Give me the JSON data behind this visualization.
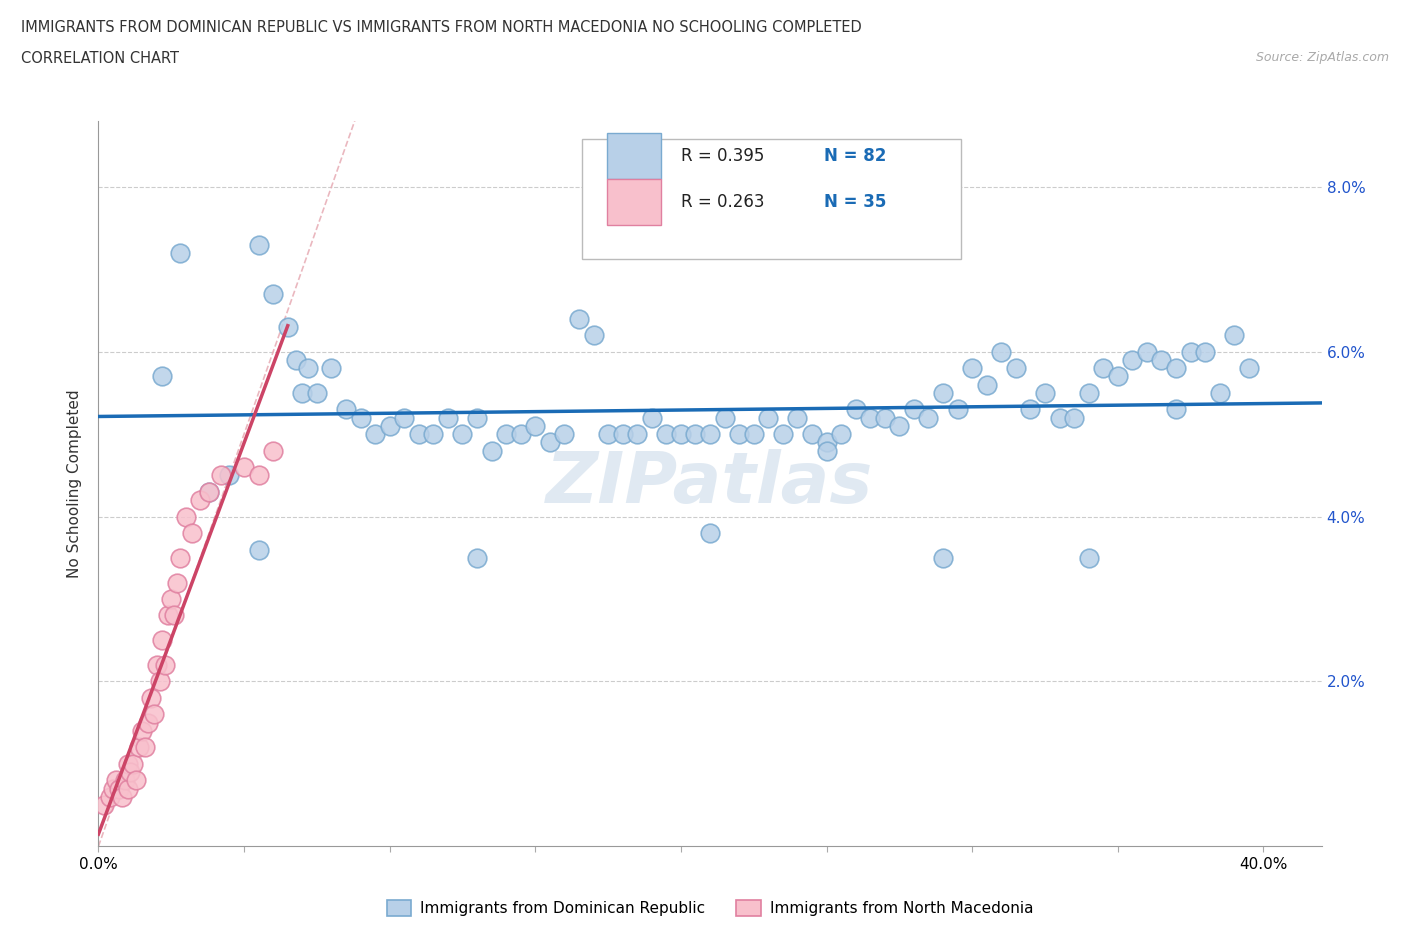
{
  "title_line1": "IMMIGRANTS FROM DOMINICAN REPUBLIC VS IMMIGRANTS FROM NORTH MACEDONIA NO SCHOOLING COMPLETED",
  "title_line2": "CORRELATION CHART",
  "source": "Source: ZipAtlas.com",
  "ylabel": "No Schooling Completed",
  "xlim": [
    0.0,
    0.42
  ],
  "ylim": [
    0.0,
    0.088
  ],
  "color_blue_fill": "#b8d0e8",
  "color_blue_edge": "#7aaad0",
  "color_pink_fill": "#f8c0cc",
  "color_pink_edge": "#e080a0",
  "color_blue_line": "#1a6bb5",
  "color_pink_line": "#cc4466",
  "color_diag": "#e8b0b8",
  "r1": "0.395",
  "n1": "82",
  "r2": "0.263",
  "n2": "35",
  "watermark": "ZIPatlas",
  "blue_x": [
    0.022,
    0.028,
    0.055,
    0.06,
    0.065,
    0.068,
    0.07,
    0.072,
    0.075,
    0.08,
    0.085,
    0.09,
    0.095,
    0.1,
    0.105,
    0.11,
    0.115,
    0.12,
    0.125,
    0.13,
    0.135,
    0.14,
    0.145,
    0.15,
    0.155,
    0.16,
    0.165,
    0.17,
    0.175,
    0.18,
    0.185,
    0.19,
    0.195,
    0.2,
    0.205,
    0.21,
    0.215,
    0.22,
    0.225,
    0.23,
    0.235,
    0.24,
    0.245,
    0.25,
    0.255,
    0.26,
    0.265,
    0.27,
    0.275,
    0.28,
    0.285,
    0.29,
    0.295,
    0.3,
    0.305,
    0.31,
    0.315,
    0.32,
    0.325,
    0.33,
    0.335,
    0.34,
    0.345,
    0.35,
    0.355,
    0.36,
    0.365,
    0.37,
    0.375,
    0.38,
    0.385,
    0.39,
    0.038,
    0.045,
    0.055,
    0.13,
    0.21,
    0.25,
    0.29,
    0.34,
    0.37,
    0.395
  ],
  "blue_y": [
    0.057,
    0.072,
    0.073,
    0.067,
    0.063,
    0.059,
    0.055,
    0.058,
    0.055,
    0.058,
    0.053,
    0.052,
    0.05,
    0.051,
    0.052,
    0.05,
    0.05,
    0.052,
    0.05,
    0.052,
    0.048,
    0.05,
    0.05,
    0.051,
    0.049,
    0.05,
    0.064,
    0.062,
    0.05,
    0.05,
    0.05,
    0.052,
    0.05,
    0.05,
    0.05,
    0.05,
    0.052,
    0.05,
    0.05,
    0.052,
    0.05,
    0.052,
    0.05,
    0.049,
    0.05,
    0.053,
    0.052,
    0.052,
    0.051,
    0.053,
    0.052,
    0.055,
    0.053,
    0.058,
    0.056,
    0.06,
    0.058,
    0.053,
    0.055,
    0.052,
    0.052,
    0.055,
    0.058,
    0.057,
    0.059,
    0.06,
    0.059,
    0.058,
    0.06,
    0.06,
    0.055,
    0.062,
    0.043,
    0.045,
    0.036,
    0.035,
    0.038,
    0.048,
    0.035,
    0.035,
    0.053,
    0.058
  ],
  "pink_x": [
    0.002,
    0.004,
    0.005,
    0.006,
    0.007,
    0.008,
    0.009,
    0.01,
    0.01,
    0.011,
    0.012,
    0.013,
    0.014,
    0.015,
    0.016,
    0.017,
    0.018,
    0.019,
    0.02,
    0.021,
    0.022,
    0.023,
    0.024,
    0.025,
    0.026,
    0.027,
    0.028,
    0.03,
    0.032,
    0.035,
    0.038,
    0.042,
    0.05,
    0.055,
    0.06
  ],
  "pink_y": [
    0.005,
    0.006,
    0.007,
    0.008,
    0.007,
    0.006,
    0.008,
    0.01,
    0.007,
    0.009,
    0.01,
    0.008,
    0.012,
    0.014,
    0.012,
    0.015,
    0.018,
    0.016,
    0.022,
    0.02,
    0.025,
    0.022,
    0.028,
    0.03,
    0.028,
    0.032,
    0.035,
    0.04,
    0.038,
    0.042,
    0.043,
    0.045,
    0.046,
    0.045,
    0.048
  ]
}
